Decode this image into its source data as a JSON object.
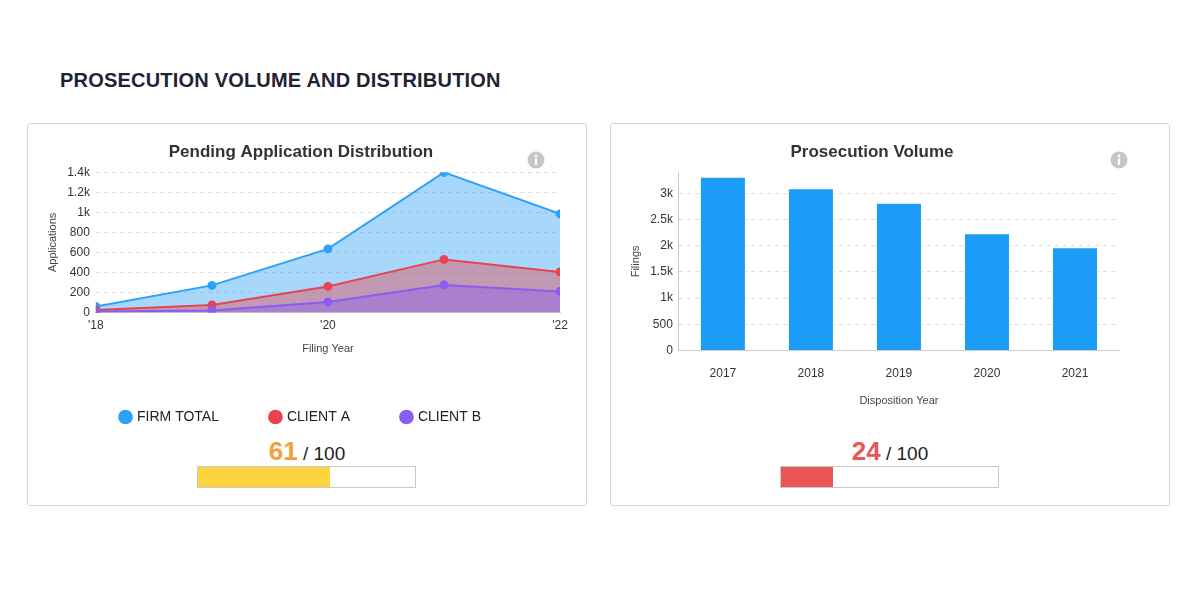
{
  "heading": "PROSECUTION VOLUME AND DISTRIBUTION",
  "chart_data": [
    {
      "type": "line",
      "title": "Pending Application Distribution",
      "x_label": "Filing Year",
      "y_label": "Applications",
      "x": [
        2018,
        2019,
        2020,
        2021,
        2022
      ],
      "series": [
        {
          "name": "FIRM TOTAL",
          "color": "#2ea1f8",
          "values": [
            60,
            270,
            635,
            1400,
            985
          ]
        },
        {
          "name": "CLIENT A",
          "color": "#e8434f",
          "values": [
            25,
            75,
            260,
            530,
            405
          ]
        },
        {
          "name": "CLIENT B",
          "color": "#8b5cf0",
          "values": [
            10,
            20,
            105,
            275,
            210
          ]
        }
      ],
      "xlim": [
        2018,
        2022
      ],
      "xticks": [
        {
          "value": 2018,
          "label": "'18"
        },
        {
          "value": 2020,
          "label": "'20"
        },
        {
          "value": 2022,
          "label": "'22"
        }
      ],
      "ylim": [
        0,
        1400
      ],
      "yticks": [
        0,
        200,
        400,
        600,
        800,
        {
          "value": 1000,
          "label": "1k"
        },
        {
          "value": 1200,
          "label": "1.2k"
        },
        {
          "value": 1400,
          "label": "1.4k"
        }
      ],
      "grid": true,
      "legend": "bottom",
      "marker": "circle",
      "score": {
        "value": 61,
        "separator": "/",
        "max": 100
      }
    },
    {
      "type": "bar",
      "title": "Prosecution Volume",
      "x_label": "Disposition Year",
      "y_label": "Filings",
      "categories": [
        "2017",
        "2018",
        "2019",
        "2020",
        "2021"
      ],
      "values": [
        3300,
        3080,
        2800,
        2220,
        1950
      ],
      "color": "#1a9cf7",
      "ylim": [
        0,
        3400
      ],
      "yticks": [
        0,
        500,
        {
          "value": 1000,
          "label": "1k"
        },
        {
          "value": 1500,
          "label": "1.5k"
        },
        {
          "value": 2000,
          "label": "2k"
        },
        {
          "value": 2500,
          "label": "2.5k"
        },
        {
          "value": 3000,
          "label": "3k"
        }
      ],
      "grid": true,
      "score": {
        "value": 24,
        "separator": "/",
        "max": 100
      }
    }
  ]
}
